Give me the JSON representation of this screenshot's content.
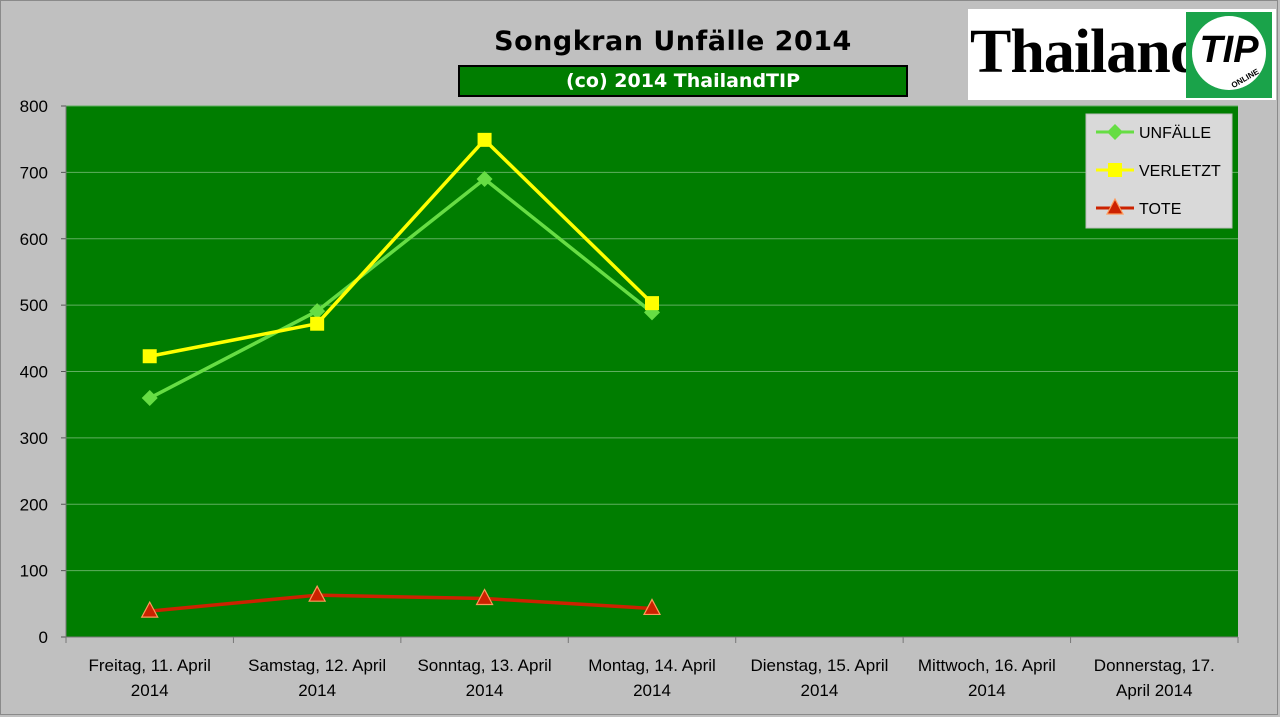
{
  "chart_data": {
    "type": "line",
    "title": "Songkran Unfälle 2014",
    "subtitle": "(co) 2014 ThailandTIP",
    "categories": [
      [
        "Freitag, 11. April",
        "2014"
      ],
      [
        "Samstag, 12. April",
        "2014"
      ],
      [
        "Sonntag, 13. April",
        "2014"
      ],
      [
        "Montag, 14. April",
        "2014"
      ],
      [
        "Dienstag, 15. April",
        "2014"
      ],
      [
        "Mittwoch, 16. April",
        "2014"
      ],
      [
        "Donnerstag, 17.",
        "April 2014"
      ]
    ],
    "series": [
      {
        "name": "UNFÄLLE",
        "color": "#66dd44",
        "marker": "diamond",
        "values": [
          360,
          491,
          690,
          489,
          null,
          null,
          null
        ]
      },
      {
        "name": "VERLETZT",
        "color": "#ffff00",
        "marker": "square",
        "values": [
          423,
          472,
          749,
          503,
          null,
          null,
          null
        ]
      },
      {
        "name": "TOTE",
        "color": "#cc2200",
        "marker": "triangle",
        "values": [
          39,
          63,
          58,
          43,
          null,
          null,
          null
        ]
      }
    ],
    "ylim": [
      0,
      800
    ],
    "yticks": [
      0,
      100,
      200,
      300,
      400,
      500,
      600,
      700,
      800
    ],
    "grid": true,
    "legend": "top-right",
    "plot_background": "#007d00"
  },
  "logo": {
    "text": "Thailand",
    "badge_text": "TIP",
    "badge_small": "ONLINE"
  }
}
